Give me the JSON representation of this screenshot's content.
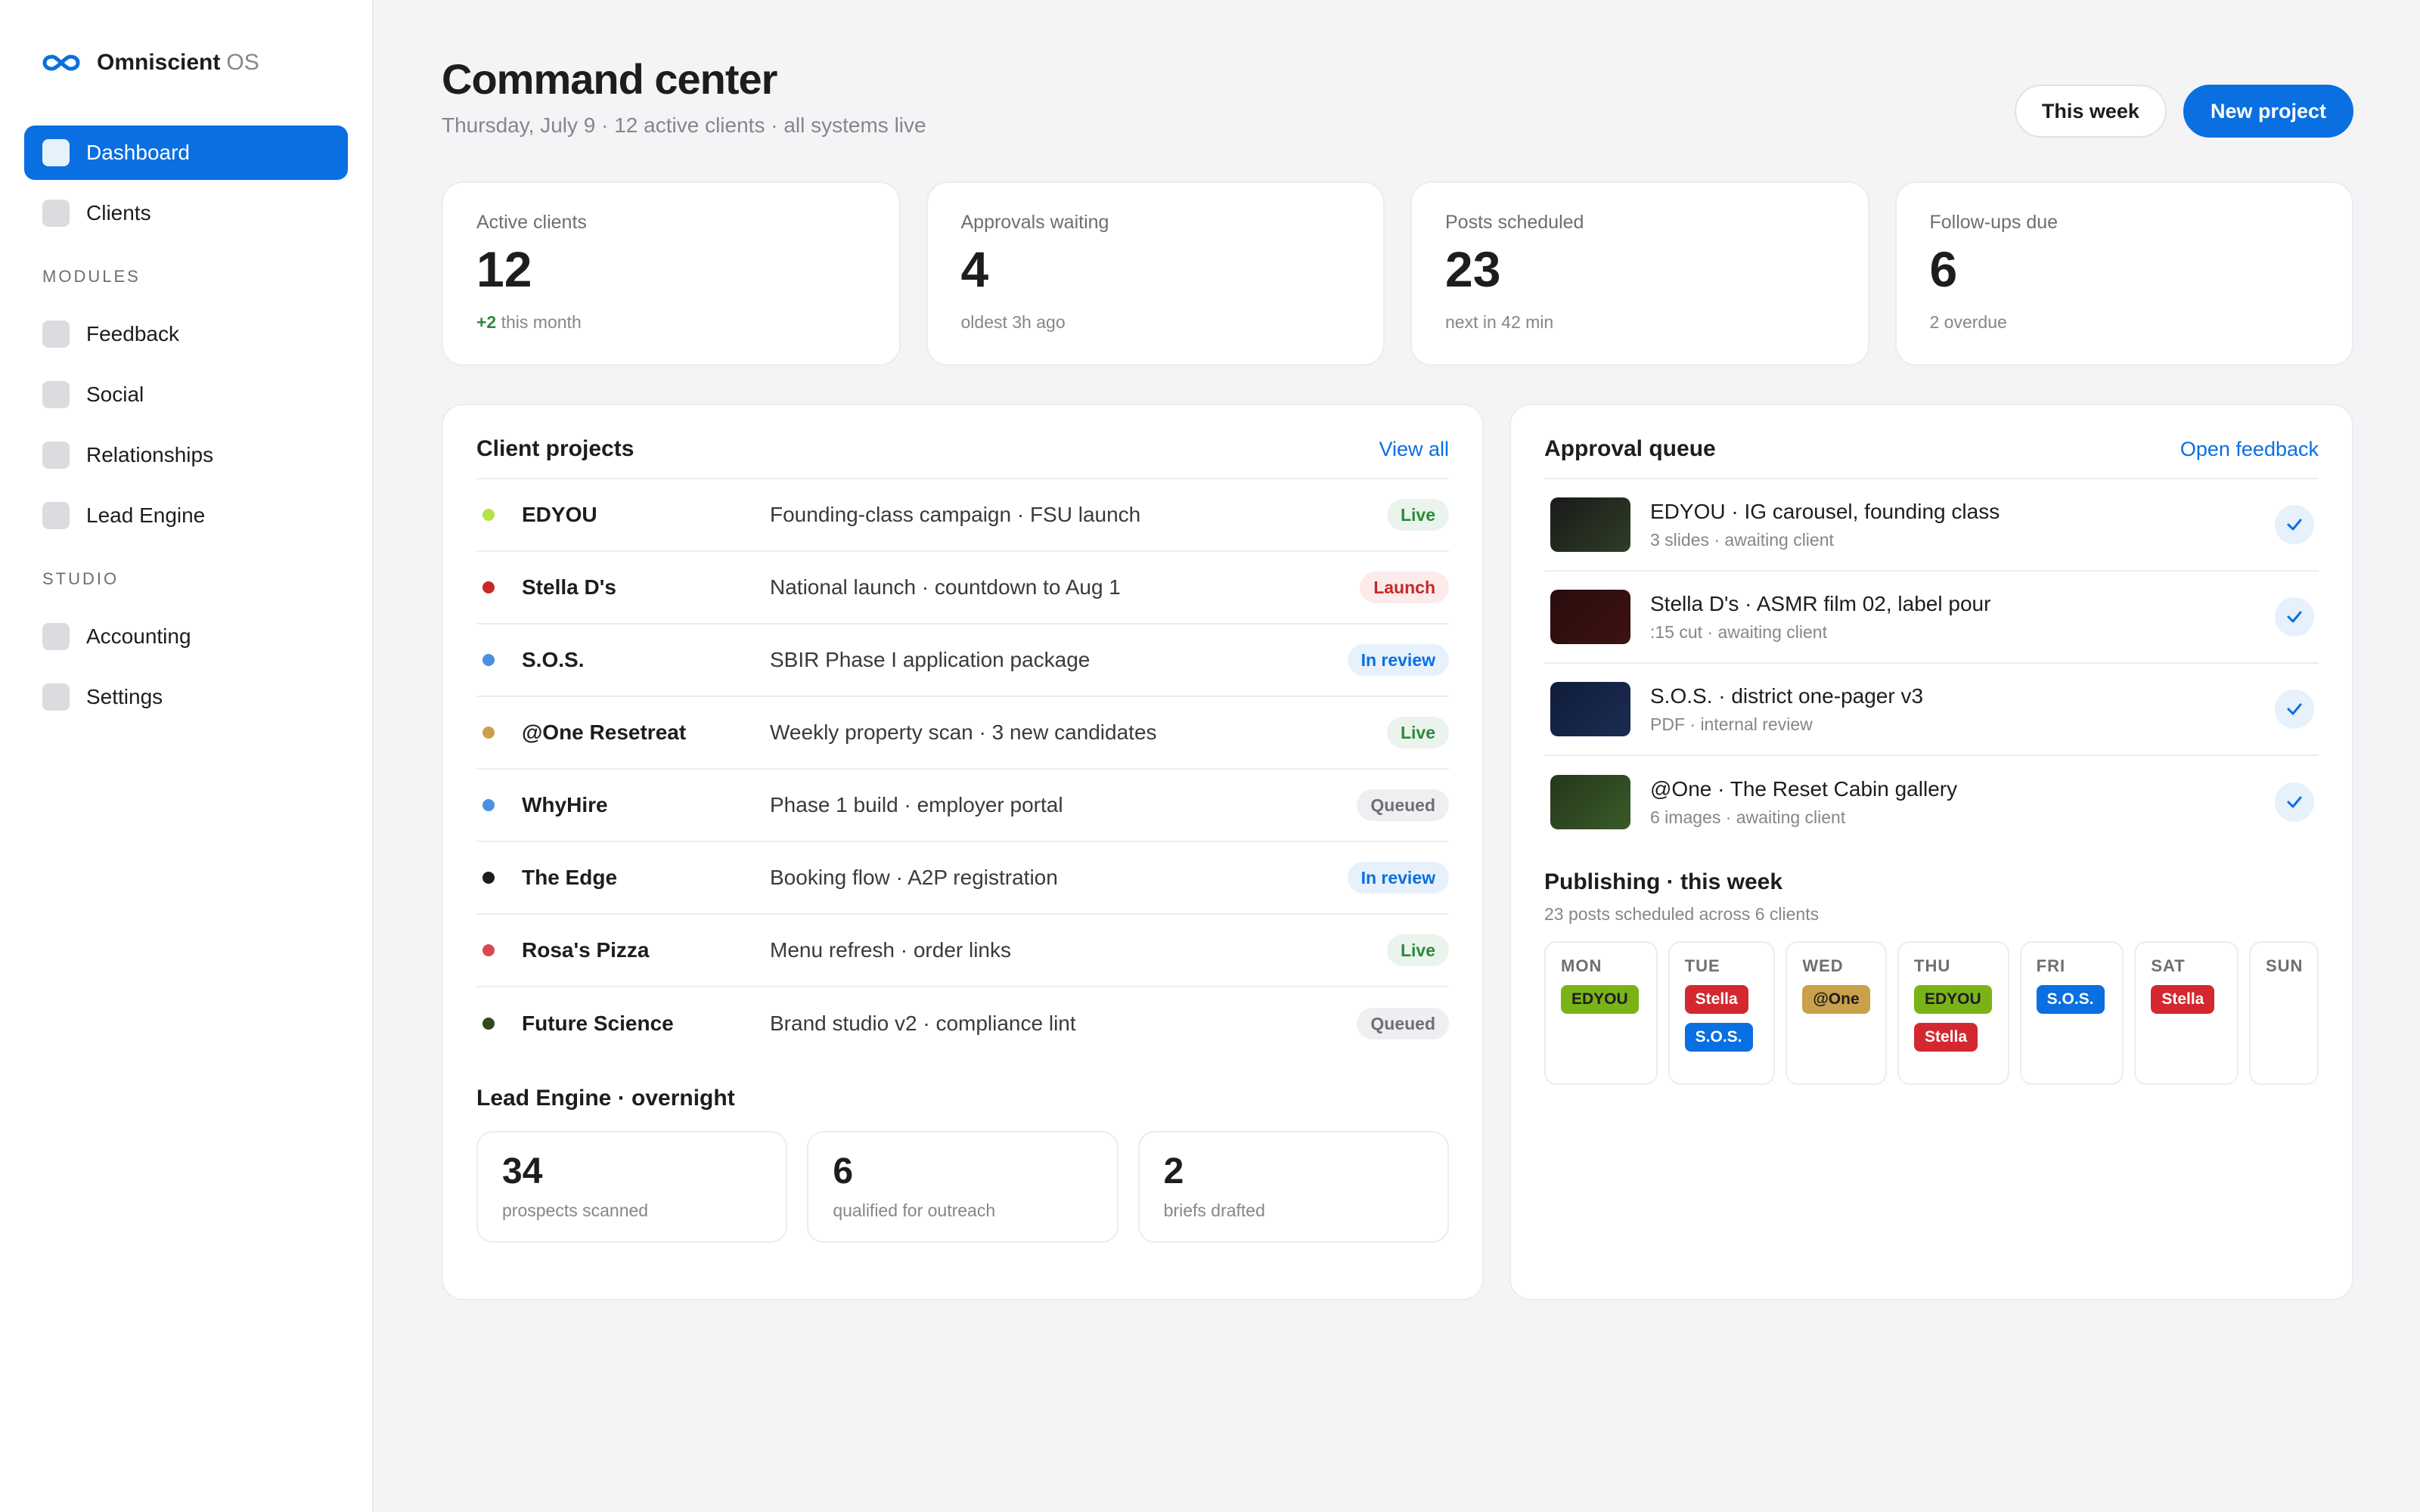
{
  "brand": {
    "name": "Omniscient",
    "suffix": "OS"
  },
  "nav": {
    "top": [
      {
        "label": "Dashboard",
        "active": true
      },
      {
        "label": "Clients",
        "active": false
      }
    ],
    "modules_label": "MODULES",
    "modules": [
      {
        "label": "Feedback"
      },
      {
        "label": "Social"
      },
      {
        "label": "Relationships"
      },
      {
        "label": "Lead Engine"
      }
    ],
    "studio_label": "STUDIO",
    "studio": [
      {
        "label": "Accounting"
      },
      {
        "label": "Settings"
      }
    ]
  },
  "header": {
    "title": "Command center",
    "subtitle": "Thursday, July 9 · 12 active clients · all systems live",
    "this_week_label": "This week",
    "new_project_label": "New project"
  },
  "stats": [
    {
      "label": "Active clients",
      "value": "12",
      "note_highlight": "+2",
      "note": " this month"
    },
    {
      "label": "Approvals waiting",
      "value": "4",
      "note_highlight": "",
      "note": "oldest 3h ago"
    },
    {
      "label": "Posts scheduled",
      "value": "23",
      "note_highlight": "",
      "note": "next in 42 min"
    },
    {
      "label": "Follow-ups due",
      "value": "6",
      "note_highlight": "",
      "note": "2 overdue"
    }
  ],
  "projects": {
    "title": "Client projects",
    "view_all": "View all",
    "rows": [
      {
        "name": "EDYOU",
        "desc": "Founding-class campaign · FSU launch",
        "status": "Live",
        "kind": "live",
        "dot": "#b5e34a"
      },
      {
        "name": "Stella D's",
        "desc": "National launch · countdown to Aug 1",
        "status": "Launch",
        "kind": "launch",
        "dot": "#c62828"
      },
      {
        "name": "S.O.S.",
        "desc": "SBIR Phase I application package",
        "status": "In review",
        "kind": "review",
        "dot": "#4a90e2"
      },
      {
        "name": "@One Resetreat",
        "desc": "Weekly property scan · 3 new candidates",
        "status": "Live",
        "kind": "live",
        "dot": "#c9a14a"
      },
      {
        "name": "WhyHire",
        "desc": "Phase 1 build · employer portal",
        "status": "Queued",
        "kind": "queued",
        "dot": "#4a90e2"
      },
      {
        "name": "The Edge",
        "desc": "Booking flow · A2P registration",
        "status": "In review",
        "kind": "review",
        "dot": "#1d1d1f"
      },
      {
        "name": "Rosa's Pizza",
        "desc": "Menu refresh · order links",
        "status": "Live",
        "kind": "live",
        "dot": "#d9484e"
      },
      {
        "name": "Future Science",
        "desc": "Brand studio v2 · compliance lint",
        "status": "Queued",
        "kind": "queued",
        "dot": "#2e4a22"
      }
    ]
  },
  "lead_engine": {
    "title": "Lead Engine · overnight",
    "cards": [
      {
        "value": "34",
        "note": "prospects scanned"
      },
      {
        "value": "6",
        "note": "qualified for outreach"
      },
      {
        "value": "2",
        "note": "briefs drafted"
      }
    ]
  },
  "approvals": {
    "title": "Approval queue",
    "open_feedback": "Open feedback",
    "rows": [
      {
        "title": "EDYOU · IG carousel, founding class",
        "sub": "3 slides · awaiting client",
        "thumb_from": "#1a1a1a",
        "thumb_to": "#2f3d26"
      },
      {
        "title": "Stella D's · ASMR film 02, label pour",
        "sub": ":15 cut · awaiting client",
        "thumb_from": "#2a0c0c",
        "thumb_to": "#3d1212"
      },
      {
        "title": "S.O.S. · district one-pager v3",
        "sub": "PDF · internal review",
        "thumb_from": "#0f1c3a",
        "thumb_to": "#1c2c52"
      },
      {
        "title": "@One · The Reset Cabin gallery",
        "sub": "6 images · awaiting client",
        "thumb_from": "#24381c",
        "thumb_to": "#3a5a28"
      }
    ]
  },
  "publishing": {
    "title": "Publishing · this week",
    "subtitle": "23 posts scheduled across 6 clients",
    "days": [
      {
        "label": "MON",
        "chips": [
          {
            "text": "EDYOU",
            "kind": "edyou"
          }
        ]
      },
      {
        "label": "TUE",
        "chips": [
          {
            "text": "Stella",
            "kind": "stella"
          },
          {
            "text": "S.O.S.",
            "kind": "sos"
          }
        ]
      },
      {
        "label": "WED",
        "chips": [
          {
            "text": "@One",
            "kind": "one"
          }
        ]
      },
      {
        "label": "THU",
        "chips": [
          {
            "text": "EDYOU",
            "kind": "edyou"
          },
          {
            "text": "Stella",
            "kind": "stella"
          }
        ]
      },
      {
        "label": "FRI",
        "chips": [
          {
            "text": "S.O.S.",
            "kind": "sos"
          }
        ]
      },
      {
        "label": "SAT",
        "chips": [
          {
            "text": "Stella",
            "kind": "stella"
          }
        ]
      },
      {
        "label": "SUN",
        "chips": []
      }
    ]
  },
  "colors": {
    "accent": "#0a6fe0",
    "positive": "#2a8a3e",
    "danger": "#c62828"
  }
}
